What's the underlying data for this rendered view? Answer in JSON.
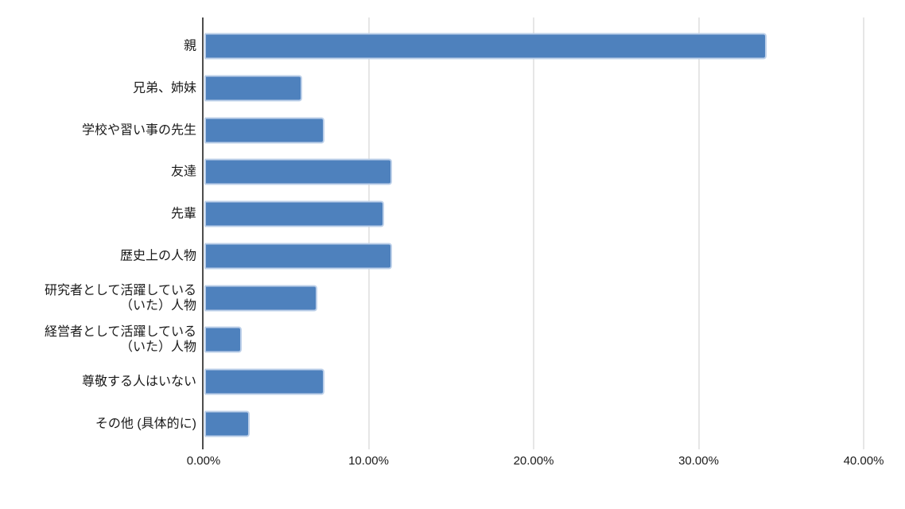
{
  "chart_data": {
    "type": "bar",
    "orientation": "horizontal",
    "title": "",
    "xlabel": "",
    "ylabel": "",
    "legend": "none",
    "grid": "vertical-only",
    "xlim": [
      0,
      40
    ],
    "x_ticks": [
      0,
      10,
      20,
      30,
      40
    ],
    "x_tick_labels": [
      "0.00%",
      "10.00%",
      "20.00%",
      "30.00%",
      "40.00%"
    ],
    "categories": [
      "親",
      "兄弟、姉妹",
      "学校や習い事の先生",
      "友達",
      "先輩",
      "歴史上の人物",
      "研究者として活躍している（いた）人物",
      "経営者として活躍している（いた）人物",
      "尊敬する人はいない",
      "その他 (具体的に)"
    ],
    "category_display_lines": [
      [
        "親"
      ],
      [
        "兄弟、姉妹"
      ],
      [
        "学校や習い事の先生"
      ],
      [
        "友達"
      ],
      [
        "先輩"
      ],
      [
        "歴史上の人物"
      ],
      [
        "研究者として活躍している",
        "（いた）人物"
      ],
      [
        "経営者として活躍している",
        "（いた）人物"
      ],
      [
        "尊敬する人はいない"
      ],
      [
        "その他 (具体的に)"
      ]
    ],
    "values": [
      34.09,
      5.91,
      7.27,
      11.36,
      10.91,
      11.36,
      6.82,
      2.27,
      7.27,
      2.73
    ],
    "values_unit": "%",
    "bar_color": "#4e81bd",
    "bar_border_color": "#bdd0e9",
    "gridline_color": "#cccccc",
    "axis_line_color": "#4d4d4d",
    "text_color": "#1a1a1a"
  }
}
